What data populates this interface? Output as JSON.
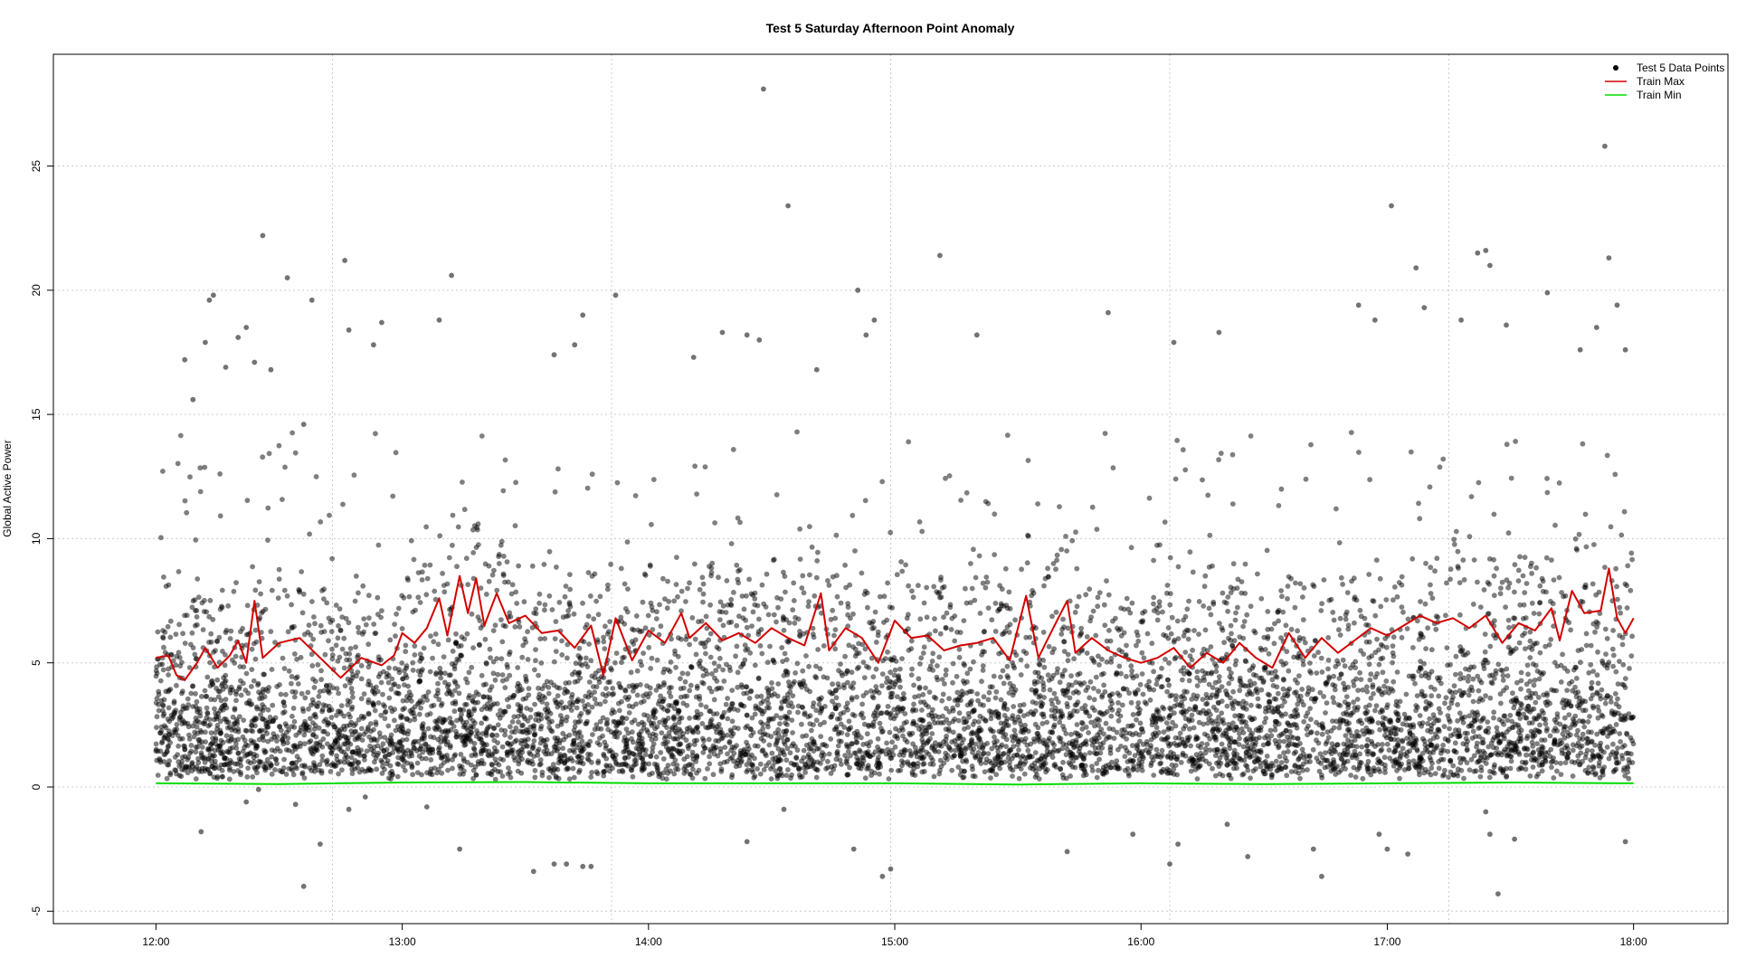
{
  "chart_data": {
    "type": "scatter",
    "title": "Test 5 Saturday Afternoon Point Anomaly",
    "xlabel": "",
    "ylabel": "Global Active Power",
    "x_ticks": [
      "12:00",
      "13:00",
      "14:00",
      "15:00",
      "16:00",
      "17:00",
      "18:00"
    ],
    "y_ticks": [
      "-5",
      "0",
      "5",
      "10",
      "15",
      "20",
      "25"
    ],
    "xlim": [
      "11:35",
      "18:23"
    ],
    "ylim": [
      -5.5,
      29.5
    ],
    "grid": true,
    "legend_position": "top-right",
    "legend": [
      {
        "label": "Test 5 Data Points",
        "kind": "point",
        "color": "#000000"
      },
      {
        "label": "Train Max",
        "kind": "line",
        "color": "#d40000"
      },
      {
        "label": "Train Min",
        "kind": "line",
        "color": "#00dd00"
      }
    ],
    "series": [
      {
        "name": "Test 5 Data Points",
        "kind": "points",
        "color": "#000000",
        "note_count_visible": "dense cloud of roughly 8000 points from 12:00 to 18:00, mostly between 0 and 10",
        "points": [
          {
            "x": "12:07",
            "y": 17.2
          },
          {
            "x": "12:09",
            "y": 15.6
          },
          {
            "x": "12:12",
            "y": 17.9
          },
          {
            "x": "12:13",
            "y": 19.6
          },
          {
            "x": "12:14",
            "y": 19.8
          },
          {
            "x": "12:17",
            "y": 16.9
          },
          {
            "x": "12:20",
            "y": 18.1
          },
          {
            "x": "12:22",
            "y": 18.5
          },
          {
            "x": "12:24",
            "y": 17.1
          },
          {
            "x": "12:26",
            "y": 22.2
          },
          {
            "x": "12:28",
            "y": 16.8
          },
          {
            "x": "12:32",
            "y": 20.5
          },
          {
            "x": "12:36",
            "y": 14.6
          },
          {
            "x": "12:38",
            "y": 19.6
          },
          {
            "x": "12:46",
            "y": 21.2
          },
          {
            "x": "12:47",
            "y": 18.4
          },
          {
            "x": "12:53",
            "y": 17.8
          },
          {
            "x": "12:55",
            "y": 18.7
          },
          {
            "x": "13:09",
            "y": 18.8
          },
          {
            "x": "13:12",
            "y": 20.6
          },
          {
            "x": "13:37",
            "y": 17.4
          },
          {
            "x": "13:42",
            "y": 17.8
          },
          {
            "x": "13:44",
            "y": 19.0
          },
          {
            "x": "13:52",
            "y": 19.8
          },
          {
            "x": "14:11",
            "y": 17.3
          },
          {
            "x": "14:18",
            "y": 18.3
          },
          {
            "x": "14:24",
            "y": 18.2
          },
          {
            "x": "14:27",
            "y": 18.0
          },
          {
            "x": "14:28",
            "y": 28.1
          },
          {
            "x": "14:34",
            "y": 23.4
          },
          {
            "x": "14:41",
            "y": 16.8
          },
          {
            "x": "14:51",
            "y": 20.0
          },
          {
            "x": "14:53",
            "y": 18.2
          },
          {
            "x": "14:55",
            "y": 18.8
          },
          {
            "x": "15:11",
            "y": 21.4
          },
          {
            "x": "15:20",
            "y": 18.2
          },
          {
            "x": "15:52",
            "y": 19.1
          },
          {
            "x": "16:08",
            "y": 17.9
          },
          {
            "x": "16:19",
            "y": 18.3
          },
          {
            "x": "16:53",
            "y": 19.4
          },
          {
            "x": "16:57",
            "y": 18.8
          },
          {
            "x": "17:01",
            "y": 23.4
          },
          {
            "x": "17:07",
            "y": 20.9
          },
          {
            "x": "17:09",
            "y": 19.3
          },
          {
            "x": "17:18",
            "y": 18.8
          },
          {
            "x": "17:22",
            "y": 21.5
          },
          {
            "x": "17:24",
            "y": 21.6
          },
          {
            "x": "17:25",
            "y": 21.0
          },
          {
            "x": "17:29",
            "y": 18.6
          },
          {
            "x": "17:39",
            "y": 19.9
          },
          {
            "x": "17:47",
            "y": 17.6
          },
          {
            "x": "17:51",
            "y": 18.5
          },
          {
            "x": "17:53",
            "y": 25.8
          },
          {
            "x": "17:54",
            "y": 21.3
          },
          {
            "x": "17:56",
            "y": 19.4
          },
          {
            "x": "17:58",
            "y": 17.6
          },
          {
            "x": "12:11",
            "y": -1.8
          },
          {
            "x": "12:22",
            "y": -0.6
          },
          {
            "x": "12:25",
            "y": -0.1
          },
          {
            "x": "12:34",
            "y": -0.7
          },
          {
            "x": "12:36",
            "y": -4.0
          },
          {
            "x": "12:40",
            "y": -2.3
          },
          {
            "x": "12:47",
            "y": -0.9
          },
          {
            "x": "12:51",
            "y": -0.4
          },
          {
            "x": "13:06",
            "y": -0.8
          },
          {
            "x": "13:14",
            "y": -2.5
          },
          {
            "x": "13:32",
            "y": -3.4
          },
          {
            "x": "13:37",
            "y": -3.1
          },
          {
            "x": "13:40",
            "y": -3.1
          },
          {
            "x": "13:44",
            "y": -3.2
          },
          {
            "x": "13:46",
            "y": -3.2
          },
          {
            "x": "14:24",
            "y": -2.2
          },
          {
            "x": "14:33",
            "y": -0.9
          },
          {
            "x": "14:50",
            "y": -2.5
          },
          {
            "x": "14:57",
            "y": -3.6
          },
          {
            "x": "14:59",
            "y": -3.3
          },
          {
            "x": "15:42",
            "y": -2.6
          },
          {
            "x": "15:58",
            "y": -1.9
          },
          {
            "x": "16:07",
            "y": -3.1
          },
          {
            "x": "16:09",
            "y": -2.3
          },
          {
            "x": "16:21",
            "y": -1.5
          },
          {
            "x": "16:26",
            "y": -2.8
          },
          {
            "x": "16:42",
            "y": -2.5
          },
          {
            "x": "16:44",
            "y": -3.6
          },
          {
            "x": "16:58",
            "y": -1.9
          },
          {
            "x": "17:00",
            "y": -2.5
          },
          {
            "x": "17:05",
            "y": -2.7
          },
          {
            "x": "17:24",
            "y": -1.0
          },
          {
            "x": "17:25",
            "y": -1.9
          },
          {
            "x": "17:27",
            "y": -4.3
          },
          {
            "x": "17:31",
            "y": -2.1
          },
          {
            "x": "17:58",
            "y": -2.2
          }
        ]
      },
      {
        "name": "Train Max",
        "kind": "line",
        "color": "#d40000",
        "points": [
          {
            "x": "12:00",
            "y": 5.2
          },
          {
            "x": "12:03",
            "y": 5.3
          },
          {
            "x": "12:05",
            "y": 4.5
          },
          {
            "x": "12:07",
            "y": 4.3
          },
          {
            "x": "12:10",
            "y": 5.0
          },
          {
            "x": "12:12",
            "y": 5.6
          },
          {
            "x": "12:15",
            "y": 4.8
          },
          {
            "x": "12:18",
            "y": 5.3
          },
          {
            "x": "12:20",
            "y": 5.9
          },
          {
            "x": "12:22",
            "y": 5.0
          },
          {
            "x": "12:24",
            "y": 7.5
          },
          {
            "x": "12:26",
            "y": 5.2
          },
          {
            "x": "12:30",
            "y": 5.8
          },
          {
            "x": "12:35",
            "y": 6.0
          },
          {
            "x": "12:40",
            "y": 5.2
          },
          {
            "x": "12:45",
            "y": 4.4
          },
          {
            "x": "12:50",
            "y": 5.2
          },
          {
            "x": "12:55",
            "y": 4.9
          },
          {
            "x": "12:58",
            "y": 5.3
          },
          {
            "x": "13:00",
            "y": 6.2
          },
          {
            "x": "13:03",
            "y": 5.8
          },
          {
            "x": "13:06",
            "y": 6.4
          },
          {
            "x": "13:09",
            "y": 7.6
          },
          {
            "x": "13:11",
            "y": 6.1
          },
          {
            "x": "13:14",
            "y": 8.5
          },
          {
            "x": "13:16",
            "y": 7.0
          },
          {
            "x": "13:18",
            "y": 8.4
          },
          {
            "x": "13:20",
            "y": 6.5
          },
          {
            "x": "13:23",
            "y": 7.8
          },
          {
            "x": "13:26",
            "y": 6.6
          },
          {
            "x": "13:30",
            "y": 6.9
          },
          {
            "x": "13:34",
            "y": 6.2
          },
          {
            "x": "13:38",
            "y": 6.3
          },
          {
            "x": "13:42",
            "y": 5.6
          },
          {
            "x": "13:46",
            "y": 6.5
          },
          {
            "x": "13:49",
            "y": 4.5
          },
          {
            "x": "13:52",
            "y": 6.8
          },
          {
            "x": "13:56",
            "y": 5.1
          },
          {
            "x": "14:00",
            "y": 6.3
          },
          {
            "x": "14:04",
            "y": 5.8
          },
          {
            "x": "14:08",
            "y": 7.0
          },
          {
            "x": "14:10",
            "y": 6.0
          },
          {
            "x": "14:14",
            "y": 6.6
          },
          {
            "x": "14:18",
            "y": 5.9
          },
          {
            "x": "14:22",
            "y": 6.2
          },
          {
            "x": "14:26",
            "y": 5.8
          },
          {
            "x": "14:30",
            "y": 6.4
          },
          {
            "x": "14:34",
            "y": 6.0
          },
          {
            "x": "14:38",
            "y": 5.7
          },
          {
            "x": "14:42",
            "y": 7.8
          },
          {
            "x": "14:44",
            "y": 5.5
          },
          {
            "x": "14:48",
            "y": 6.4
          },
          {
            "x": "14:52",
            "y": 6.0
          },
          {
            "x": "14:56",
            "y": 5.0
          },
          {
            "x": "15:00",
            "y": 6.7
          },
          {
            "x": "15:04",
            "y": 6.0
          },
          {
            "x": "15:08",
            "y": 6.1
          },
          {
            "x": "15:12",
            "y": 5.5
          },
          {
            "x": "15:16",
            "y": 5.7
          },
          {
            "x": "15:20",
            "y": 5.8
          },
          {
            "x": "15:24",
            "y": 6.0
          },
          {
            "x": "15:28",
            "y": 5.1
          },
          {
            "x": "15:32",
            "y": 7.7
          },
          {
            "x": "15:35",
            "y": 5.2
          },
          {
            "x": "15:38",
            "y": 6.2
          },
          {
            "x": "15:42",
            "y": 7.5
          },
          {
            "x": "15:44",
            "y": 5.4
          },
          {
            "x": "15:48",
            "y": 6.0
          },
          {
            "x": "15:52",
            "y": 5.5
          },
          {
            "x": "15:56",
            "y": 5.2
          },
          {
            "x": "16:00",
            "y": 5.0
          },
          {
            "x": "16:04",
            "y": 5.2
          },
          {
            "x": "16:08",
            "y": 5.6
          },
          {
            "x": "16:12",
            "y": 4.8
          },
          {
            "x": "16:16",
            "y": 5.4
          },
          {
            "x": "16:20",
            "y": 5.0
          },
          {
            "x": "16:24",
            "y": 5.8
          },
          {
            "x": "16:28",
            "y": 5.2
          },
          {
            "x": "16:32",
            "y": 4.8
          },
          {
            "x": "16:36",
            "y": 6.2
          },
          {
            "x": "16:40",
            "y": 5.2
          },
          {
            "x": "16:44",
            "y": 6.0
          },
          {
            "x": "16:48",
            "y": 5.4
          },
          {
            "x": "16:52",
            "y": 5.9
          },
          {
            "x": "16:56",
            "y": 6.4
          },
          {
            "x": "17:00",
            "y": 6.1
          },
          {
            "x": "17:04",
            "y": 6.5
          },
          {
            "x": "17:08",
            "y": 6.9
          },
          {
            "x": "17:12",
            "y": 6.6
          },
          {
            "x": "17:16",
            "y": 6.8
          },
          {
            "x": "17:20",
            "y": 6.4
          },
          {
            "x": "17:24",
            "y": 6.9
          },
          {
            "x": "17:28",
            "y": 5.8
          },
          {
            "x": "17:32",
            "y": 6.6
          },
          {
            "x": "17:36",
            "y": 6.3
          },
          {
            "x": "17:40",
            "y": 7.2
          },
          {
            "x": "17:42",
            "y": 5.9
          },
          {
            "x": "17:45",
            "y": 7.9
          },
          {
            "x": "17:48",
            "y": 7.0
          },
          {
            "x": "17:52",
            "y": 7.1
          },
          {
            "x": "17:54",
            "y": 8.8
          },
          {
            "x": "17:56",
            "y": 6.8
          },
          {
            "x": "17:58",
            "y": 6.2
          },
          {
            "x": "18:00",
            "y": 6.8
          }
        ]
      },
      {
        "name": "Train Min",
        "kind": "line",
        "color": "#00dd00",
        "points": [
          {
            "x": "12:00",
            "y": 0.15
          },
          {
            "x": "12:30",
            "y": 0.12
          },
          {
            "x": "13:00",
            "y": 0.18
          },
          {
            "x": "13:30",
            "y": 0.2
          },
          {
            "x": "14:00",
            "y": 0.15
          },
          {
            "x": "14:30",
            "y": 0.15
          },
          {
            "x": "15:00",
            "y": 0.15
          },
          {
            "x": "15:30",
            "y": 0.1
          },
          {
            "x": "16:00",
            "y": 0.15
          },
          {
            "x": "16:30",
            "y": 0.12
          },
          {
            "x": "17:00",
            "y": 0.15
          },
          {
            "x": "17:30",
            "y": 0.18
          },
          {
            "x": "18:00",
            "y": 0.15
          }
        ]
      }
    ]
  }
}
